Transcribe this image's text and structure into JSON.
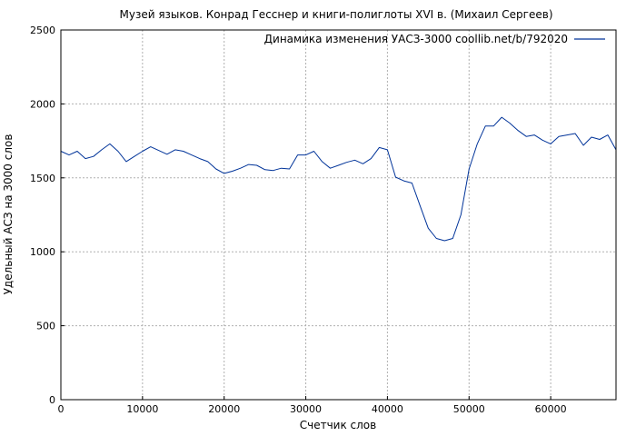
{
  "chart_data": {
    "type": "line",
    "title": "Музей языков. Конрад Гесснер и книги-полиглоты XVI в. (Михаил Сергеев)",
    "xlabel": "Счетчик слов",
    "ylabel": "Удельный АСЗ на 3000 слов",
    "xlim": [
      0,
      68000
    ],
    "ylim": [
      0,
      2500
    ],
    "x_ticks": [
      0,
      10000,
      20000,
      30000,
      40000,
      50000,
      60000
    ],
    "y_ticks": [
      0,
      500,
      1000,
      1500,
      2000,
      2500
    ],
    "grid": true,
    "legend_position": "top-right",
    "series": [
      {
        "name": "Динамика изменения УАСЗ-3000 coollib.net/b/792020",
        "color": "#003399",
        "x": [
          0,
          1000,
          2000,
          3000,
          4000,
          5000,
          6000,
          7000,
          8000,
          9000,
          10000,
          11000,
          12000,
          13000,
          14000,
          15000,
          16000,
          17000,
          18000,
          19000,
          20000,
          21000,
          22000,
          23000,
          24000,
          25000,
          26000,
          27000,
          28000,
          29000,
          30000,
          31000,
          32000,
          33000,
          34000,
          35000,
          36000,
          37000,
          38000,
          39000,
          40000,
          41000,
          42000,
          43000,
          44000,
          45000,
          46000,
          47000,
          48000,
          49000,
          50000,
          51000,
          52000,
          53000,
          54000,
          55000,
          56000,
          57000,
          58000,
          59000,
          60000,
          61000,
          62000,
          63000,
          64000,
          65000,
          66000,
          67000,
          68000
        ],
        "y": [
          1680,
          1655,
          1680,
          1630,
          1645,
          1690,
          1730,
          1680,
          1610,
          1645,
          1680,
          1710,
          1685,
          1660,
          1690,
          1680,
          1655,
          1630,
          1610,
          1560,
          1530,
          1545,
          1565,
          1590,
          1585,
          1555,
          1550,
          1565,
          1560,
          1655,
          1655,
          1680,
          1610,
          1565,
          1585,
          1605,
          1620,
          1595,
          1630,
          1705,
          1690,
          1505,
          1480,
          1465,
          1310,
          1160,
          1090,
          1075,
          1090,
          1250,
          1560,
          1730,
          1850,
          1850,
          1910,
          1870,
          1820,
          1780,
          1790,
          1755,
          1730,
          1780,
          1790,
          1800,
          1720,
          1775,
          1760,
          1790,
          1690
        ]
      }
    ]
  }
}
